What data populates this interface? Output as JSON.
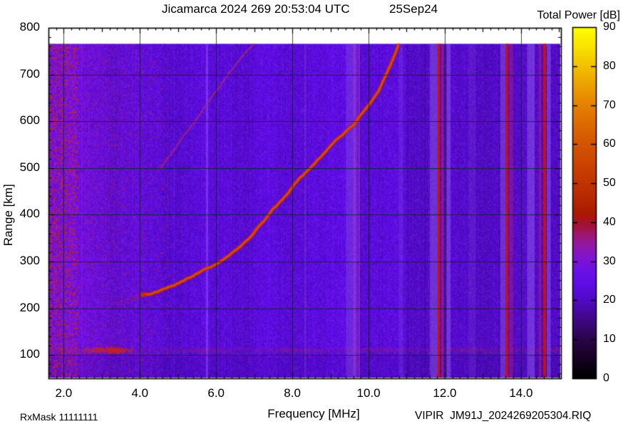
{
  "header": {
    "title": "Jicamarca 2024 269 20:53:04 UTC",
    "date": "25Sep24",
    "colorbar_title": "Total Power [dB]"
  },
  "footer": {
    "rx_mask": "RxMask 11111111",
    "file_label": "VIPIR  JM91J_2024269205304.RIQ"
  },
  "chart_data": {
    "type": "heatmap",
    "title": "Jicamarca 2024 269 20:53:04 UTC  25Sep24",
    "xlabel": "Frequency [MHz]",
    "ylabel": "Range [km]",
    "colorbar_label": "Total Power [dB]",
    "xlim": [
      1.6,
      15.05
    ],
    "ylim": [
      50,
      800
    ],
    "grid": true,
    "x_ticks": [
      2,
      4,
      6,
      8,
      10,
      12,
      14
    ],
    "x_tick_labels": [
      "2.0",
      "4.0",
      "6.0",
      "8.0",
      "10.0",
      "12.0",
      "14.0"
    ],
    "x_minor_step_mhz": 0.2,
    "y_ticks": [
      100,
      200,
      300,
      400,
      500,
      600,
      700,
      800
    ],
    "y_tick_labels": [
      "100",
      "200",
      "300",
      "400",
      "500",
      "600",
      "700",
      "800"
    ],
    "y_minor_step_km": 20,
    "data_top_km": 766,
    "background": {
      "base_color": "#5c0cdc",
      "approx_db": 22,
      "left_noise_zone_mhz": [
        1.6,
        2.35
      ],
      "mid_noise_zone_mhz": [
        2.35,
        4.8
      ],
      "dark_right_zone_start_mhz": 10.95
    },
    "colorbar": {
      "min": 0,
      "max": 90,
      "ticks": [
        0,
        10,
        20,
        30,
        40,
        50,
        60,
        70,
        80,
        90
      ],
      "tick_labels": [
        "0",
        "10",
        "20",
        "30",
        "40",
        "50",
        "60",
        "70",
        "80",
        "90"
      ],
      "stops": [
        {
          "pos": 0.0,
          "color": "#000000"
        },
        {
          "pos": 0.05,
          "color": "#12021c"
        },
        {
          "pos": 0.11,
          "color": "#2a0548"
        },
        {
          "pos": 0.17,
          "color": "#400887"
        },
        {
          "pos": 0.22,
          "color": "#4f0ac2"
        },
        {
          "pos": 0.27,
          "color": "#5e0de4"
        },
        {
          "pos": 0.31,
          "color": "#6d11e4"
        },
        {
          "pos": 0.345,
          "color": "#7f15cd"
        },
        {
          "pos": 0.38,
          "color": "#9218a4"
        },
        {
          "pos": 0.41,
          "color": "#9d166e"
        },
        {
          "pos": 0.435,
          "color": "#a21238"
        },
        {
          "pos": 0.465,
          "color": "#aa1708"
        },
        {
          "pos": 0.5,
          "color": "#b32400"
        },
        {
          "pos": 0.56,
          "color": "#c13500"
        },
        {
          "pos": 0.62,
          "color": "#cc4600"
        },
        {
          "pos": 0.67,
          "color": "#d45600"
        },
        {
          "pos": 0.72,
          "color": "#dc6900"
        },
        {
          "pos": 0.78,
          "color": "#e58200"
        },
        {
          "pos": 0.83,
          "color": "#eb9e00"
        },
        {
          "pos": 0.89,
          "color": "#f3c100"
        },
        {
          "pos": 0.945,
          "color": "#f9e400"
        },
        {
          "pos": 1.0,
          "color": "#ffff00"
        }
      ]
    },
    "main_trace": {
      "name": "F-region-echo-trace",
      "approx_db": 52,
      "points": [
        [
          4.08,
          229
        ],
        [
          4.2,
          230
        ],
        [
          4.35,
          233
        ],
        [
          4.5,
          236
        ],
        [
          4.65,
          241
        ],
        [
          4.8,
          248
        ],
        [
          5.0,
          256
        ],
        [
          5.2,
          264
        ],
        [
          5.4,
          272
        ],
        [
          5.6,
          281
        ],
        [
          5.8,
          289
        ],
        [
          6.0,
          297
        ],
        [
          6.2,
          308
        ],
        [
          6.4,
          320
        ],
        [
          6.6,
          333
        ],
        [
          6.8,
          346
        ],
        [
          7.0,
          360
        ],
        [
          7.2,
          381
        ],
        [
          7.4,
          403
        ],
        [
          7.6,
          423
        ],
        [
          7.8,
          441
        ],
        [
          8.0,
          460
        ],
        [
          8.2,
          479
        ],
        [
          8.4,
          495
        ],
        [
          8.6,
          511
        ],
        [
          8.8,
          529
        ],
        [
          9.0,
          547
        ],
        [
          9.2,
          561
        ],
        [
          9.35,
          571
        ],
        [
          9.5,
          583
        ],
        [
          9.65,
          596
        ],
        [
          9.8,
          611
        ],
        [
          9.95,
          627
        ],
        [
          10.1,
          645
        ],
        [
          10.25,
          666
        ],
        [
          10.4,
          690
        ],
        [
          10.55,
          717
        ],
        [
          10.67,
          741
        ],
        [
          10.78,
          766
        ]
      ]
    },
    "second_trace": {
      "name": "faint-second-hop-echo",
      "approx_db": 30,
      "points": [
        [
          4.55,
          500
        ],
        [
          4.75,
          524
        ],
        [
          4.95,
          547
        ],
        [
          5.15,
          570
        ],
        [
          5.35,
          592
        ],
        [
          5.55,
          614
        ],
        [
          5.75,
          636
        ],
        [
          5.95,
          658
        ],
        [
          6.15,
          680
        ],
        [
          6.35,
          702
        ],
        [
          6.55,
          724
        ],
        [
          6.75,
          744
        ],
        [
          6.95,
          762
        ],
        [
          7.02,
          766
        ]
      ]
    },
    "e_region_band": {
      "center_km": 110,
      "freq_extent_mhz": [
        1.6,
        15.0
      ],
      "bright_blob_mhz": [
        2.5,
        3.8
      ],
      "approx_db": 36
    },
    "rfi_stripes": [
      {
        "freq": 5.76,
        "width": 0.06,
        "color": "#9b68f2",
        "alpha": 0.4
      },
      {
        "freq": 8.34,
        "width": 0.05,
        "color": "#9b68f2",
        "alpha": 0.22
      },
      {
        "freq": 9.56,
        "width": 0.3,
        "color": "#9b68f2",
        "alpha": 0.3
      },
      {
        "freq": 9.63,
        "width": 0.05,
        "color": "#c040c0",
        "alpha": 0.45
      },
      {
        "freq": 9.75,
        "width": 0.05,
        "color": "#c040c0",
        "alpha": 0.4
      },
      {
        "freq": 10.85,
        "width": 0.12,
        "color": "#9b68f2",
        "alpha": 0.18
      },
      {
        "freq": 11.72,
        "width": 0.22,
        "color": "#9b68f2",
        "alpha": 0.4
      },
      {
        "freq": 11.84,
        "width": 0.06,
        "color": "#cc1500",
        "alpha": 0.95
      },
      {
        "freq": 11.94,
        "width": 0.06,
        "color": "#b12060",
        "alpha": 0.65
      },
      {
        "freq": 12.1,
        "width": 0.1,
        "color": "#9b68f2",
        "alpha": 0.45
      },
      {
        "freq": 12.72,
        "width": 0.18,
        "color": "#9b68f2",
        "alpha": 0.15
      },
      {
        "freq": 13.53,
        "width": 0.14,
        "color": "#9b68f2",
        "alpha": 0.38
      },
      {
        "freq": 13.63,
        "width": 0.06,
        "color": "#cc1500",
        "alpha": 0.95
      },
      {
        "freq": 13.74,
        "width": 0.1,
        "color": "#b12060",
        "alpha": 0.45
      },
      {
        "freq": 14.26,
        "width": 0.2,
        "color": "#9b68f2",
        "alpha": 0.42
      },
      {
        "freq": 14.5,
        "width": 0.06,
        "color": "#b12060",
        "alpha": 0.6
      },
      {
        "freq": 14.62,
        "width": 0.07,
        "color": "#cc1500",
        "alpha": 0.95
      },
      {
        "freq": 14.73,
        "width": 0.1,
        "color": "#9b68f2",
        "alpha": 0.45
      }
    ]
  }
}
